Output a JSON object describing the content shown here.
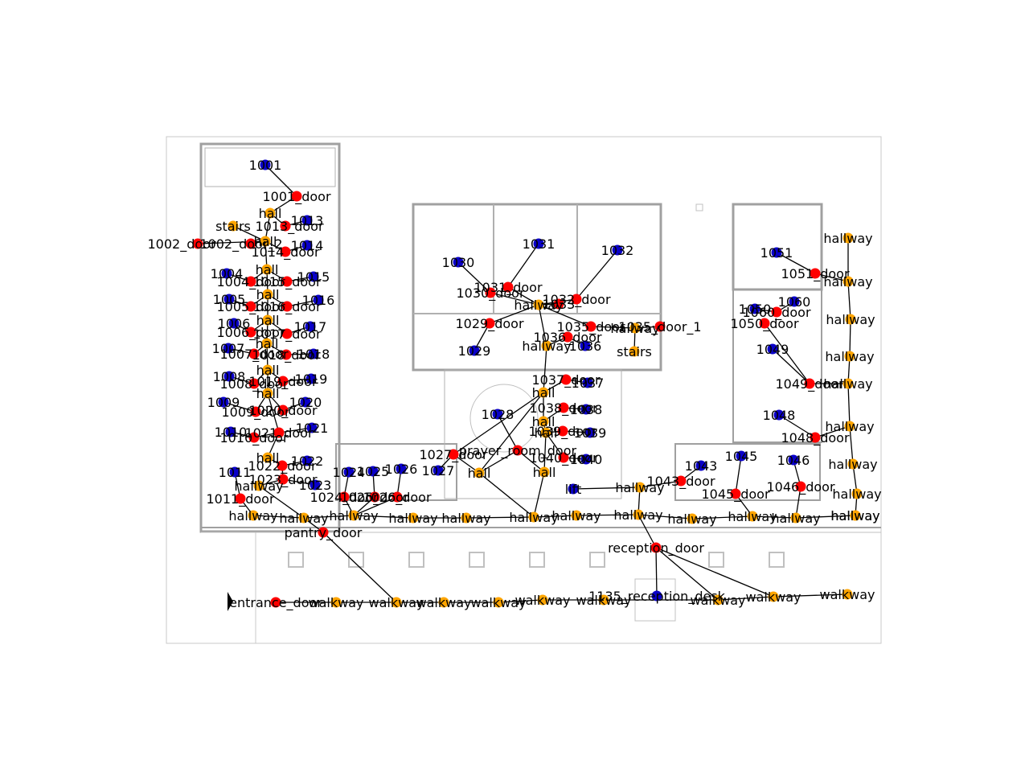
{
  "colors": {
    "room": "#0a00c8",
    "door": "#ff0000",
    "connector": "#ffa500",
    "edge": "#000000",
    "wall": "#a0a0a0"
  },
  "nodes": [
    {
      "id": "r1001",
      "label": "1001",
      "type": "room"
    },
    {
      "id": "d1001",
      "label": "1001_door",
      "type": "door"
    },
    {
      "id": "c_hall_top",
      "label": "hall",
      "type": "connector"
    },
    {
      "id": "c_stairs_l",
      "label": "stairs",
      "type": "connector"
    },
    {
      "id": "d1013",
      "label": "1013_door",
      "type": "door"
    },
    {
      "id": "r1013",
      "label": "1013",
      "type": "room"
    },
    {
      "id": "d1002",
      "label": "1002_door",
      "type": "door"
    },
    {
      "id": "d1002b",
      "label": "1002_door_2",
      "type": "door"
    },
    {
      "id": "c_hall_2",
      "label": "hall",
      "type": "connector"
    },
    {
      "id": "d1014",
      "label": "1014_door",
      "type": "door"
    },
    {
      "id": "r1014",
      "label": "1014",
      "type": "room"
    },
    {
      "id": "r1004",
      "label": "1004",
      "type": "room"
    },
    {
      "id": "d1004",
      "label": "1004_door",
      "type": "door"
    },
    {
      "id": "c_hall_3",
      "label": "hall",
      "type": "connector"
    },
    {
      "id": "d1015",
      "label": "1015_door",
      "type": "door"
    },
    {
      "id": "r1015",
      "label": "1015",
      "type": "room"
    },
    {
      "id": "r1005",
      "label": "1005",
      "type": "room"
    },
    {
      "id": "d1005",
      "label": "1005_door",
      "type": "door"
    },
    {
      "id": "c_hall_4",
      "label": "hall",
      "type": "connector"
    },
    {
      "id": "d1016",
      "label": "1016_door",
      "type": "door"
    },
    {
      "id": "r1016",
      "label": "1016",
      "type": "room"
    },
    {
      "id": "r1006",
      "label": "1006",
      "type": "room"
    },
    {
      "id": "d1006",
      "label": "1006_door",
      "type": "door"
    },
    {
      "id": "c_hall_5",
      "label": "hall",
      "type": "connector"
    },
    {
      "id": "d1017",
      "label": "1017_door",
      "type": "door"
    },
    {
      "id": "r1017",
      "label": "1017",
      "type": "room"
    },
    {
      "id": "r1007",
      "label": "1007",
      "type": "room"
    },
    {
      "id": "d1007",
      "label": "1007_door",
      "type": "door"
    },
    {
      "id": "c_hall_6",
      "label": "hall",
      "type": "connector"
    },
    {
      "id": "d1018",
      "label": "1018_door",
      "type": "door"
    },
    {
      "id": "r1018",
      "label": "1018",
      "type": "room"
    },
    {
      "id": "r1008",
      "label": "1008",
      "type": "room"
    },
    {
      "id": "d1008",
      "label": "1008_door",
      "type": "door"
    },
    {
      "id": "c_hall_7",
      "label": "hall",
      "type": "connector"
    },
    {
      "id": "d1019",
      "label": "1019_door",
      "type": "door"
    },
    {
      "id": "r1019",
      "label": "1019",
      "type": "room"
    },
    {
      "id": "r1009",
      "label": "1009",
      "type": "room"
    },
    {
      "id": "d1009",
      "label": "1009_door",
      "type": "door"
    },
    {
      "id": "c_hall_8",
      "label": "hall",
      "type": "connector"
    },
    {
      "id": "d1020",
      "label": "1020_door",
      "type": "door"
    },
    {
      "id": "r1020",
      "label": "1020",
      "type": "room"
    },
    {
      "id": "r1010",
      "label": "1010",
      "type": "room"
    },
    {
      "id": "d1010",
      "label": "1010_door",
      "type": "door"
    },
    {
      "id": "d1021",
      "label": "1021_door",
      "type": "door"
    },
    {
      "id": "r1021",
      "label": "1021",
      "type": "room"
    },
    {
      "id": "c_hall_9",
      "label": "hall",
      "type": "connector"
    },
    {
      "id": "d1022",
      "label": "1022_door",
      "type": "door"
    },
    {
      "id": "r1022",
      "label": "1022",
      "type": "room"
    },
    {
      "id": "d1023",
      "label": "1023_door",
      "type": "door"
    },
    {
      "id": "r1023",
      "label": "1023",
      "type": "room"
    },
    {
      "id": "r1011",
      "label": "1011",
      "type": "room"
    },
    {
      "id": "d1011",
      "label": "1011_door",
      "type": "door"
    },
    {
      "id": "c_hw_l1",
      "label": "hallway",
      "type": "connector"
    },
    {
      "id": "c_hw_l2",
      "label": "hallway",
      "type": "connector"
    },
    {
      "id": "c_hw_l3",
      "label": "hallway",
      "type": "connector"
    },
    {
      "id": "c_hw_l4",
      "label": "hallway",
      "type": "connector"
    },
    {
      "id": "r1024",
      "label": "1024",
      "type": "room"
    },
    {
      "id": "r1025",
      "label": "1025",
      "type": "room"
    },
    {
      "id": "r1026",
      "label": "1026",
      "type": "room"
    },
    {
      "id": "d1024",
      "label": "1024_door",
      "type": "door"
    },
    {
      "id": "d1025",
      "label": "1025_door",
      "type": "door"
    },
    {
      "id": "d1026",
      "label": "1026_door",
      "type": "door"
    },
    {
      "id": "r1027",
      "label": "1027",
      "type": "room"
    },
    {
      "id": "d1027",
      "label": "1027_door",
      "type": "door"
    },
    {
      "id": "c_hall_mid",
      "label": "hall",
      "type": "connector"
    },
    {
      "id": "d_pantry",
      "label": "pantry_door",
      "type": "door"
    },
    {
      "id": "r1030",
      "label": "1030",
      "type": "room"
    },
    {
      "id": "d1030",
      "label": "1030_door",
      "type": "door"
    },
    {
      "id": "r1031",
      "label": "1031",
      "type": "room"
    },
    {
      "id": "d1031",
      "label": "1031_door",
      "type": "door"
    },
    {
      "id": "r1032",
      "label": "1032",
      "type": "room"
    },
    {
      "id": "d1032",
      "label": "1032_door",
      "type": "door"
    },
    {
      "id": "c_hw_c",
      "label": "hallway",
      "type": "connector"
    },
    {
      "id": "d1033",
      "label": "1033",
      "type": "door"
    },
    {
      "id": "d1029",
      "label": "1029_door",
      "type": "door"
    },
    {
      "id": "r1029",
      "label": "1029",
      "type": "room"
    },
    {
      "id": "d1035",
      "label": "1035_door",
      "type": "door"
    },
    {
      "id": "d1035b",
      "label": "1035_door_1",
      "type": "door"
    },
    {
      "id": "c_hw_c2",
      "label": "hallway",
      "type": "connector"
    },
    {
      "id": "c_hw_c3",
      "label": "hallway",
      "type": "connector"
    },
    {
      "id": "d1036",
      "label": "1036_door",
      "type": "door"
    },
    {
      "id": "r1036",
      "label": "1036",
      "type": "room"
    },
    {
      "id": "c_stairs_c",
      "label": "stairs",
      "type": "connector"
    },
    {
      "id": "c_hall_c",
      "label": "hall",
      "type": "connector"
    },
    {
      "id": "d1037",
      "label": "1037_door",
      "type": "door"
    },
    {
      "id": "r1037",
      "label": "1037",
      "type": "room"
    },
    {
      "id": "c_hall_c2",
      "label": "hall",
      "type": "connector"
    },
    {
      "id": "d1038",
      "label": "1038_door",
      "type": "door"
    },
    {
      "id": "r1038",
      "label": "1038",
      "type": "room"
    },
    {
      "id": "r1028",
      "label": "1028",
      "type": "room"
    },
    {
      "id": "c_hall_c3",
      "label": "hall",
      "type": "connector"
    },
    {
      "id": "d1039",
      "label": "1039_door",
      "type": "door"
    },
    {
      "id": "r1039",
      "label": "1039",
      "type": "room"
    },
    {
      "id": "d_prayer",
      "label": "prayer_room_door",
      "type": "door"
    },
    {
      "id": "d1040",
      "label": "1040_door",
      "type": "door"
    },
    {
      "id": "r1040",
      "label": "1040",
      "type": "room"
    },
    {
      "id": "c_hall_c4",
      "label": "hall",
      "type": "connector"
    },
    {
      "id": "c_hw_m1",
      "label": "hallway",
      "type": "connector"
    },
    {
      "id": "c_hw_m2",
      "label": "hallway",
      "type": "connector"
    },
    {
      "id": "c_hw_m3",
      "label": "hallway",
      "type": "connector"
    },
    {
      "id": "c_hw_m4",
      "label": "hallway",
      "type": "connector"
    },
    {
      "id": "c_lift",
      "label": "lift",
      "type": "room"
    },
    {
      "id": "c_hw_lift",
      "label": "hallway",
      "type": "connector"
    },
    {
      "id": "d1043",
      "label": "1043_door",
      "type": "door"
    },
    {
      "id": "r1043",
      "label": "1043",
      "type": "room"
    },
    {
      "id": "c_hw_m5",
      "label": "hallway",
      "type": "connector"
    },
    {
      "id": "c_hw_m6",
      "label": "hallway",
      "type": "connector"
    },
    {
      "id": "d_reception",
      "label": "reception_door",
      "type": "door"
    },
    {
      "id": "r1135",
      "label": "1135_reception_desk",
      "type": "room"
    },
    {
      "id": "r1045",
      "label": "1045",
      "type": "room"
    },
    {
      "id": "d1045",
      "label": "1045_door",
      "type": "door"
    },
    {
      "id": "r1046",
      "label": "1046",
      "type": "room"
    },
    {
      "id": "d1046",
      "label": "1046_door",
      "type": "door"
    },
    {
      "id": "c_hw_r1",
      "label": "hallway",
      "type": "connector"
    },
    {
      "id": "c_hw_r2",
      "label": "hallway",
      "type": "connector"
    },
    {
      "id": "c_hw_r3",
      "label": "hallway",
      "type": "connector"
    },
    {
      "id": "r1051",
      "label": "1051",
      "type": "room"
    },
    {
      "id": "d1051",
      "label": "1051_door",
      "type": "door"
    },
    {
      "id": "r1050",
      "label": "1050",
      "type": "room"
    },
    {
      "id": "r1060",
      "label": "1060",
      "type": "room"
    },
    {
      "id": "d1060",
      "label": "1060_door",
      "type": "door"
    },
    {
      "id": "d1050",
      "label": "1050_door",
      "type": "door"
    },
    {
      "id": "r1049",
      "label": "1049",
      "type": "room"
    },
    {
      "id": "d1049",
      "label": "1049_door",
      "type": "door"
    },
    {
      "id": "r1048",
      "label": "1048",
      "type": "room"
    },
    {
      "id": "d1048",
      "label": "1048_door",
      "type": "door"
    },
    {
      "id": "c_hw_e1",
      "label": "hallway",
      "type": "connector"
    },
    {
      "id": "c_hw_e2",
      "label": "hallway",
      "type": "connector"
    },
    {
      "id": "c_hw_e3",
      "label": "hallway",
      "type": "connector"
    },
    {
      "id": "c_hw_e4",
      "label": "hallway",
      "type": "connector"
    },
    {
      "id": "c_hw_e5",
      "label": "hallway",
      "type": "connector"
    },
    {
      "id": "c_hw_e6",
      "label": "hallway",
      "type": "connector"
    },
    {
      "id": "c_hw_e7",
      "label": "hallway",
      "type": "connector"
    },
    {
      "id": "c_hw_e8",
      "label": "hallway",
      "type": "connector"
    },
    {
      "id": "c_hw_e9",
      "label": "hallway",
      "type": "connector"
    },
    {
      "id": "d_entrance",
      "label": "entrance_door",
      "type": "door"
    },
    {
      "id": "c_wk1",
      "label": "walkway",
      "type": "connector"
    },
    {
      "id": "c_wk2",
      "label": "walkway",
      "type": "connector"
    },
    {
      "id": "c_wk3",
      "label": "walkway",
      "type": "connector"
    },
    {
      "id": "c_wk4",
      "label": "walkway",
      "type": "connector"
    },
    {
      "id": "c_wk5",
      "label": "walkway",
      "type": "connector"
    },
    {
      "id": "c_wk6",
      "label": "walkway",
      "type": "connector"
    },
    {
      "id": "c_wk7",
      "label": "walkway",
      "type": "connector"
    },
    {
      "id": "c_wk8",
      "label": "walkway",
      "type": "connector"
    },
    {
      "id": "c_wk9",
      "label": "walkway",
      "type": "connector"
    }
  ],
  "edges": [
    [
      "r1001",
      "d1001"
    ],
    [
      "d1001",
      "c_hall_top"
    ],
    [
      "c_hall_top",
      "d1013"
    ],
    [
      "d1013",
      "r1013"
    ],
    [
      "c_hall_top",
      "c_hall_2"
    ],
    [
      "c_stairs_l",
      "c_hall_2"
    ],
    [
      "d1002",
      "c_hall_2"
    ],
    [
      "d1002b",
      "c_hall_2"
    ],
    [
      "c_hall_2",
      "d1014"
    ],
    [
      "d1014",
      "r1014"
    ],
    [
      "c_hall_2",
      "c_hall_3"
    ],
    [
      "r1004",
      "d1004"
    ],
    [
      "d1004",
      "c_hall_3"
    ],
    [
      "c_hall_3",
      "d1015"
    ],
    [
      "d1015",
      "r1015"
    ],
    [
      "c_hall_3",
      "c_hall_4"
    ],
    [
      "r1005",
      "d1005"
    ],
    [
      "d1005",
      "c_hall_4"
    ],
    [
      "c_hall_4",
      "d1016"
    ],
    [
      "d1016",
      "r1016"
    ],
    [
      "c_hall_4",
      "c_hall_5"
    ],
    [
      "r1006",
      "d1006"
    ],
    [
      "d1006",
      "c_hall_5"
    ],
    [
      "c_hall_5",
      "d1017"
    ],
    [
      "d1017",
      "r1017"
    ],
    [
      "c_hall_5",
      "c_hall_6"
    ],
    [
      "r1007",
      "d1007"
    ],
    [
      "d1007",
      "c_hall_6"
    ],
    [
      "c_hall_6",
      "d1018"
    ],
    [
      "d1018",
      "r1018"
    ],
    [
      "c_hall_6",
      "c_hall_7"
    ],
    [
      "r1008",
      "d1008"
    ],
    [
      "d1008",
      "c_hall_7"
    ],
    [
      "c_hall_7",
      "d1019"
    ],
    [
      "d1019",
      "r1019"
    ],
    [
      "c_hall_7",
      "c_hall_8"
    ],
    [
      "r1009",
      "d1009"
    ],
    [
      "d1009",
      "c_hall_8"
    ],
    [
      "c_hall_8",
      "d1020"
    ],
    [
      "d1020",
      "r1020"
    ],
    [
      "c_hall_8",
      "d1021"
    ],
    [
      "r1010",
      "d1010"
    ],
    [
      "d1010",
      "d1021"
    ],
    [
      "d1021",
      "r1021"
    ],
    [
      "d1021",
      "c_hall_9"
    ],
    [
      "c_hall_9",
      "d1022"
    ],
    [
      "d1022",
      "r1022"
    ],
    [
      "d1022",
      "d1023"
    ],
    [
      "d1023",
      "r1023"
    ],
    [
      "d1023",
      "c_hw_l1"
    ],
    [
      "r1011",
      "d1011"
    ],
    [
      "d1011",
      "c_hw_l2"
    ],
    [
      "c_hw_l1",
      "c_hw_l3"
    ],
    [
      "c_hw_l2",
      "c_hw_l3"
    ],
    [
      "c_hw_l3",
      "c_hw_l4"
    ],
    [
      "c_hw_l3",
      "d_pantry"
    ],
    [
      "d_pantry",
      "c_wk2"
    ],
    [
      "r1024",
      "d1024"
    ],
    [
      "r1025",
      "d1025"
    ],
    [
      "r1026",
      "d1026"
    ],
    [
      "d1024",
      "c_hw_l4"
    ],
    [
      "d1025",
      "c_hw_l4"
    ],
    [
      "d1026",
      "c_hw_l4"
    ],
    [
      "c_hw_l4",
      "c_hw_m1"
    ],
    [
      "c_hw_m1",
      "c_hw_m2"
    ],
    [
      "c_hw_m2",
      "c_hw_m3"
    ],
    [
      "c_hw_m3",
      "c_hw_m4"
    ],
    [
      "c_hw_m4",
      "c_hw_m5"
    ],
    [
      "c_hw_m5",
      "c_hw_m6"
    ],
    [
      "c_hw_m6",
      "c_hw_r1"
    ],
    [
      "c_hw_r1",
      "c_hw_r2"
    ],
    [
      "c_hw_r2",
      "c_hw_e9"
    ],
    [
      "r1027",
      "d1027"
    ],
    [
      "d1027",
      "c_hall_mid"
    ],
    [
      "c_hall_mid",
      "d_prayer"
    ],
    [
      "c_hall_mid",
      "c_hw_m3"
    ],
    [
      "c_hall_c",
      "c_hall_mid"
    ],
    [
      "c_hall_c",
      "d1027"
    ],
    [
      "r1030",
      "d1030"
    ],
    [
      "d1030",
      "c_hw_c"
    ],
    [
      "r1031",
      "d1031"
    ],
    [
      "d1031",
      "c_hw_c"
    ],
    [
      "r1032",
      "d1032"
    ],
    [
      "d1032",
      "c_hw_c"
    ],
    [
      "c_hw_c",
      "d1033"
    ],
    [
      "c_hw_c",
      "d1029"
    ],
    [
      "d1029",
      "r1029"
    ],
    [
      "c_hw_c",
      "d1035"
    ],
    [
      "d1035",
      "c_hw_c2"
    ],
    [
      "c_hw_c2",
      "d1035b"
    ],
    [
      "c_hw_c2",
      "c_stairs_c"
    ],
    [
      "c_hw_c",
      "c_hw_c3"
    ],
    [
      "c_hw_c3",
      "d1036"
    ],
    [
      "d1036",
      "r1036"
    ],
    [
      "c_hw_c3",
      "c_hall_c"
    ],
    [
      "c_hall_c",
      "d1037"
    ],
    [
      "d1037",
      "r1037"
    ],
    [
      "c_hall_c",
      "c_hall_c2"
    ],
    [
      "c_hall_c2",
      "d1038"
    ],
    [
      "d1038",
      "r1038"
    ],
    [
      "c_hall_c2",
      "c_hall_c3"
    ],
    [
      "c_hall_c3",
      "d1039"
    ],
    [
      "d1039",
      "r1039"
    ],
    [
      "c_hall_c3",
      "d1040"
    ],
    [
      "d1040",
      "r1040"
    ],
    [
      "c_hall_c3",
      "c_hall_c4"
    ],
    [
      "d_prayer",
      "c_hall_c4"
    ],
    [
      "r1028",
      "d_prayer"
    ],
    [
      "c_hall_c4",
      "c_hw_m3"
    ],
    [
      "c_lift",
      "c_hw_lift"
    ],
    [
      "c_hw_lift",
      "d1043"
    ],
    [
      "d1043",
      "r1043"
    ],
    [
      "c_hw_lift",
      "c_hw_m5"
    ],
    [
      "c_hw_m5",
      "d_reception"
    ],
    [
      "d_reception",
      "r1135"
    ],
    [
      "d_reception",
      "c_wk7"
    ],
    [
      "d_reception",
      "c_wk8"
    ],
    [
      "r1045",
      "d1045"
    ],
    [
      "d1045",
      "c_hw_r1"
    ],
    [
      "r1046",
      "d1046"
    ],
    [
      "d1046",
      "c_hw_r2"
    ],
    [
      "r1051",
      "d1051"
    ],
    [
      "d1051",
      "c_hw_e2"
    ],
    [
      "r1060",
      "d1060"
    ],
    [
      "r1050",
      "d1060"
    ],
    [
      "d1050",
      "d1049"
    ],
    [
      "r1049",
      "d1049"
    ],
    [
      "d1049",
      "c_hw_e5"
    ],
    [
      "r1048",
      "d1048"
    ],
    [
      "d1048",
      "c_hw_e6"
    ],
    [
      "c_hw_e1",
      "c_hw_e2"
    ],
    [
      "c_hw_e2",
      "c_hw_e3"
    ],
    [
      "c_hw_e3",
      "c_hw_e4"
    ],
    [
      "c_hw_e4",
      "c_hw_e5"
    ],
    [
      "c_hw_e5",
      "c_hw_e6"
    ],
    [
      "c_hw_e6",
      "c_hw_e7"
    ],
    [
      "c_hw_e7",
      "c_hw_e8"
    ],
    [
      "c_hw_e8",
      "c_hw_e9"
    ],
    [
      "d_entrance",
      "c_wk1"
    ],
    [
      "c_wk1",
      "c_wk2"
    ],
    [
      "c_wk2",
      "c_wk3"
    ],
    [
      "c_wk3",
      "c_wk4"
    ],
    [
      "c_wk4",
      "c_wk5"
    ],
    [
      "c_wk5",
      "c_wk6"
    ],
    [
      "c_wk6",
      "c_wk7"
    ],
    [
      "c_wk7",
      "c_wk8"
    ],
    [
      "c_wk8",
      "c_wk9"
    ]
  ]
}
